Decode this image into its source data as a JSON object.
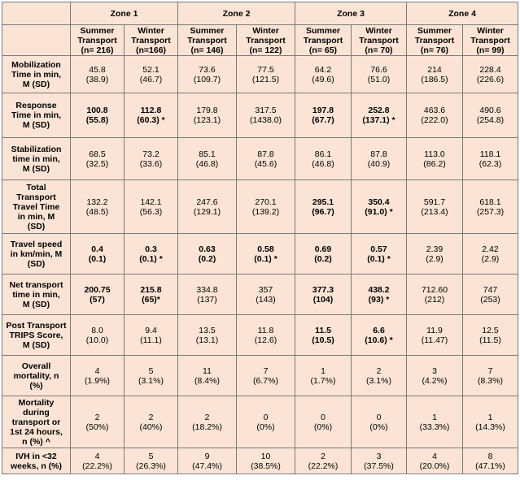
{
  "zones": [
    "Zone 1",
    "Zone 2",
    "Zone 3",
    "Zone 4"
  ],
  "subheaders": [
    [
      "Summer",
      "Transport",
      "(n= 216)"
    ],
    [
      "Winter",
      "Transport",
      "(n=166)"
    ],
    [
      "Summer",
      "Transport",
      "(n= 146)"
    ],
    [
      "Winter",
      "Transport",
      "(n= 122)"
    ],
    [
      "Summer",
      "Transport",
      "(n= 65)"
    ],
    [
      "Winter",
      "Transport",
      "(n= 70)"
    ],
    [
      "Summer",
      "Transport",
      "(n= 76)"
    ],
    [
      "Winter",
      "Transport",
      "(n= 99)"
    ]
  ],
  "rows": [
    {
      "label": [
        "Mobilization",
        "Time in min,",
        "M (SD)"
      ],
      "cells": [
        [
          "45.8",
          "(38.9)"
        ],
        [
          "52.1",
          "(46.7)"
        ],
        [
          "73.6",
          "(109.7)"
        ],
        [
          "77.5",
          "(121.5)"
        ],
        [
          "64.2",
          "(49.6)"
        ],
        [
          "76.6",
          "(51.0)"
        ],
        [
          "214",
          "(186.5)"
        ],
        [
          "228.4",
          "(226.6)"
        ]
      ]
    },
    {
      "label": [
        "Response",
        "Time in min,",
        "M (SD)"
      ],
      "cells": [
        [
          "100.8",
          "(55.8)"
        ],
        [
          "112.8",
          "(60.3) *"
        ],
        [
          "179.8",
          "(123.1)"
        ],
        [
          "317.5",
          "(1438.0)"
        ],
        [
          "197.8",
          "(67.7)"
        ],
        [
          "252.8",
          "(137.1) *"
        ],
        [
          "463.6",
          "(222.0)"
        ],
        [
          "490.6",
          "(254.8)"
        ]
      ]
    },
    {
      "label": [
        "Stabilization",
        "time in min,",
        "M (SD)"
      ],
      "cells": [
        [
          "68.5",
          "(32.5)"
        ],
        [
          "73.2",
          "(33.6)"
        ],
        [
          "85.1",
          "(46.8)"
        ],
        [
          "87.8",
          "(45.6)"
        ],
        [
          "86.1",
          "(46.8)"
        ],
        [
          "87.8",
          "(40.9)"
        ],
        [
          "113.0",
          "(86.2)"
        ],
        [
          "118.1",
          "(62.3)"
        ]
      ]
    },
    {
      "label": [
        "Total",
        "Transport",
        "Travel Time",
        "in min, M",
        "(SD)"
      ],
      "cells": [
        [
          "132.2",
          "(48.5)"
        ],
        [
          "142.1",
          "(56.3)"
        ],
        [
          "247.6",
          "(129.1)"
        ],
        [
          "270.1",
          "(139.2)"
        ],
        [
          "295.1",
          "(96.7)"
        ],
        [
          "350.4",
          "(91.0) *"
        ],
        [
          "591.7",
          "(213.4)"
        ],
        [
          "618.1",
          "(257.3)"
        ]
      ]
    },
    {
      "label": [
        "Travel speed",
        "in km/min, M",
        "(SD)"
      ],
      "cells": [
        [
          "0.4",
          "(0.1)"
        ],
        [
          "0.3",
          "(0.1) *"
        ],
        [
          "0.63",
          "(0.2)"
        ],
        [
          "0.58",
          "(0.1) *"
        ],
        [
          "0.69",
          "(0.2)"
        ],
        [
          "0.57",
          "(0.1) *"
        ],
        [
          "2.39",
          "(2.9)"
        ],
        [
          "2.42",
          "(2.9)"
        ]
      ]
    },
    {
      "label": [
        "Net transport",
        "time in min,",
        "M (SD)"
      ],
      "cells": [
        [
          "200.75",
          "(57)"
        ],
        [
          "215.8",
          "(65)*"
        ],
        [
          "334.8",
          "(137)"
        ],
        [
          "357",
          "(143)"
        ],
        [
          "377.3",
          "(104)"
        ],
        [
          "438.2",
          "(93) *"
        ],
        [
          "712.60",
          "(212)"
        ],
        [
          "747",
          "(253)"
        ]
      ]
    },
    {
      "label": [
        "Post Transport",
        "TRIPS Score,",
        "M (SD)"
      ],
      "cells": [
        [
          "8.0",
          "(10.0)"
        ],
        [
          "9.4",
          "(11.1)"
        ],
        [
          "13.5",
          "(13.1)"
        ],
        [
          "11.8",
          "(12.6)"
        ],
        [
          "11.5",
          "(10.5)"
        ],
        [
          "6.6",
          "(10.6) *"
        ],
        [
          "11.9",
          "(11.47)"
        ],
        [
          "12.5",
          "(11.5)"
        ]
      ]
    },
    {
      "label": [
        "Overall",
        "mortality, n",
        "(%)"
      ],
      "cells": [
        [
          "4",
          "(1.9%)"
        ],
        [
          "5",
          "(3.1%)"
        ],
        [
          "11",
          "(8.4%)"
        ],
        [
          "7",
          "(6.7%)"
        ],
        [
          "1",
          "(1.7%)"
        ],
        [
          "2",
          "(3.1%)"
        ],
        [
          "3",
          "(4.2%)"
        ],
        [
          "7",
          "(8.3%)"
        ]
      ]
    },
    {
      "label": [
        "Mortality",
        "during",
        "transport or",
        "1st 24 hours,",
        "n (%) ^"
      ],
      "cells": [
        [
          "2",
          "(50%)"
        ],
        [
          "2",
          "(40%)"
        ],
        [
          "2",
          "(18.2%)"
        ],
        [
          "0",
          "(0%)"
        ],
        [
          "0",
          "(0%)"
        ],
        [
          "0",
          "(0%)"
        ],
        [
          "1",
          "(33.3%)"
        ],
        [
          "1",
          "(14.3%)"
        ]
      ]
    },
    {
      "label": [
        "IVH in <32",
        "weeks, n (%)"
      ],
      "cells": [
        [
          "4",
          "(22.2%)"
        ],
        [
          "5",
          "(26.3%)"
        ],
        [
          "9",
          "(47.4%)"
        ],
        [
          "10",
          "(38.5%)"
        ],
        [
          "2",
          "(22.2%)"
        ],
        [
          "3",
          "(37.5%)"
        ],
        [
          "4",
          "(20.0%)"
        ],
        [
          "8",
          "(47.1%)"
        ]
      ]
    }
  ]
}
